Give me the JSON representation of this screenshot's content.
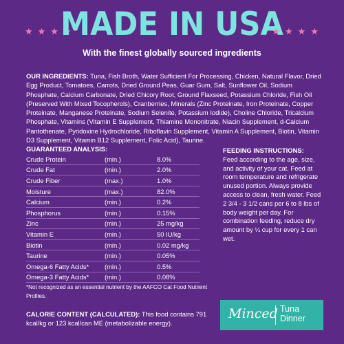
{
  "headline": "MADE IN USA",
  "subhead": "With the finest globally sourced ingredients",
  "decor": {
    "star_color": "#f07ab8",
    "headline_color": "#7fe3df",
    "background": "#5c2a86"
  },
  "ingredients": {
    "label": "OUR INGREDIENTS:",
    "text": "Tuna, Fish Broth, Water Sufficient For Processing, Chicken, Natural Flavor, Dried Egg Product, Tomatoes, Carrots, Dried Ground Peas, Guar Gum, Salt, Sunflower Oil, Sodium Phosphate, Calcium Carbonate, Dried Chicory Root, Ground Flaxseed, Potassium Chloride, Fish Oil (Preserved With Mixed Tocopherols), Cranberries, Minerals (Zinc Proteinate, Iron Proteinate, Copper Proteinate, Manganese Proteinate, Sodium Selenite, Potassium Iodide), Choline Chloride, Tricalcium Phosphate, Vitamins (Vitamin E Supplement, Thiamine Mononitrate, Niacin Supplement, d-Calcium Pantothenate, Pyridoxine Hydrochloride, Riboflavin Supplement, Vitamin A Supplement, Biotin, Vitamin D3 Supplement, Vitamin B12 Supplement, Folic Acid), Taurine."
  },
  "guaranteed_analysis": {
    "title": "GUARANTEED ANALYSIS:",
    "rows": [
      {
        "name": "Crude Protein",
        "qual": "(min.)",
        "value": "8.0%"
      },
      {
        "name": "Crude Fat",
        "qual": "(min.)",
        "value": "2.0%"
      },
      {
        "name": "Crude Fiber",
        "qual": "(max.)",
        "value": "1.0%"
      },
      {
        "name": "Moisture",
        "qual": "(max.)",
        "value": "82.0%"
      },
      {
        "name": "Calcium",
        "qual": "(min.)",
        "value": "0.2%"
      },
      {
        "name": "Phosphorus",
        "qual": "(min.)",
        "value": "0.15%"
      },
      {
        "name": "Zinc",
        "qual": "(min.)",
        "value": "25 mg/kg"
      },
      {
        "name": "Vitamin E",
        "qual": "(min.)",
        "value": "50 IU/kg"
      },
      {
        "name": "Biotin",
        "qual": "(min.)",
        "value": "0.02 mg/kg"
      },
      {
        "name": "Taurine",
        "qual": "(min.)",
        "value": "0.05%"
      },
      {
        "name": "Omega-6 Fatty Acids*",
        "qual": "(min.)",
        "value": "0.5%"
      },
      {
        "name": "Omega-3 Fatty Acids*",
        "qual": "(min.)",
        "value": "0.08%"
      }
    ]
  },
  "feeding": {
    "title": "FEEDING INSTRUCTIONS:",
    "text": "Feed according to the age, size, and activity of your cat. Feed at room temperature and refrigerate unused portion. Always provide access to clean, fresh water. Feed 2 3/4 - 3 1/2 cans per 6 to 8 lbs of body weight per day. For combination feeding, reduce dry amount by ¼ cup for every 1 can wet."
  },
  "footnote": "*Not recognized as an essential nutrient by the AAFCO Cat Food Nutrient Profiles.",
  "calorie": {
    "label": "CALORIE CONTENT (CALCULATED):",
    "text": "This food contains 791 kcal/kg or 123 kcal/can ME (metabolizable energy)."
  },
  "badge": {
    "style": "Minced",
    "flavor": "Tuna Dinner"
  }
}
